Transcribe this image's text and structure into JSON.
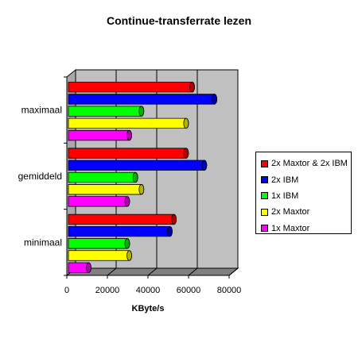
{
  "chart_data": {
    "type": "bar",
    "orientation": "horizontal",
    "style": "3d-cylinder",
    "title": "Continue-transferrate lezen",
    "xlabel": "KByte/s",
    "ylabel": "",
    "categories": [
      "maximaal",
      "gemiddeld",
      "minimaal"
    ],
    "xlim": [
      0,
      80000
    ],
    "xticks": [
      "0",
      "20000",
      "40000",
      "60000",
      "80000"
    ],
    "grid": true,
    "legend_position": "right",
    "series": [
      {
        "name": "2x Maxtor & 2x IBM",
        "color": "#ff0000",
        "values": [
          61000,
          58000,
          52000
        ]
      },
      {
        "name": "2x IBM",
        "color": "#0000ff",
        "values": [
          72000,
          67000,
          50000
        ]
      },
      {
        "name": "1x IBM",
        "color": "#00ff00",
        "values": [
          36000,
          33000,
          29000
        ]
      },
      {
        "name": "2x Maxtor",
        "color": "#ffff00",
        "values": [
          58000,
          36000,
          30000
        ]
      },
      {
        "name": "1x Maxtor",
        "color": "#ff00ff",
        "values": [
          30000,
          29000,
          10000
        ]
      }
    ]
  }
}
